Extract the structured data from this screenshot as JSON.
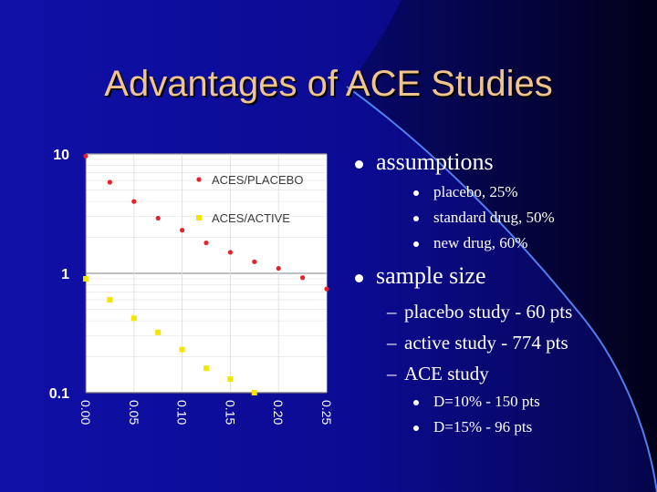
{
  "slide": {
    "title": "Advantages of ACE Studies",
    "bullets": [
      {
        "text": "assumptions",
        "sub": [
          "placebo, 25%",
          "standard drug, 50%",
          "new drug, 60%"
        ]
      },
      {
        "text": "sample size",
        "sub": [
          "placebo study - 60 pts",
          "active study - 774 pts",
          "ACE study"
        ],
        "subsub": [
          "D=10% - 150 pts",
          "D=15% - 96 pts"
        ]
      }
    ],
    "dash": "–",
    "colors": {
      "background": "#0b0b8f",
      "title": "#f0c48a",
      "text": "#ffffff"
    }
  },
  "chart_data": {
    "type": "scatter",
    "title": "",
    "xlabel": "",
    "ylabel": "",
    "y_scale": "log",
    "xlim": [
      0,
      0.25
    ],
    "ylim": [
      0.1,
      10
    ],
    "x_ticks": [
      "0.00",
      "0.05",
      "0.10",
      "0.15",
      "0.20",
      "0.25"
    ],
    "y_ticks": [
      "10",
      "1",
      "0.1"
    ],
    "grid": true,
    "legend_position": "top-right",
    "series": [
      {
        "name": "ACES/PLACEBO",
        "marker": "circle",
        "color": "#e8202a",
        "x": [
          0.0,
          0.025,
          0.05,
          0.075,
          0.1,
          0.125,
          0.15,
          0.175,
          0.2,
          0.225,
          0.25
        ],
        "y": [
          9.6,
          5.8,
          4.0,
          2.9,
          2.3,
          1.8,
          1.5,
          1.25,
          1.1,
          0.92,
          0.74
        ]
      },
      {
        "name": "ACES/ACTIVE",
        "marker": "square",
        "color": "#f2e600",
        "x": [
          0.0,
          0.025,
          0.05,
          0.075,
          0.1,
          0.125,
          0.15,
          0.175
        ],
        "y": [
          0.9,
          0.6,
          0.42,
          0.32,
          0.23,
          0.16,
          0.13,
          0.1
        ]
      }
    ]
  }
}
